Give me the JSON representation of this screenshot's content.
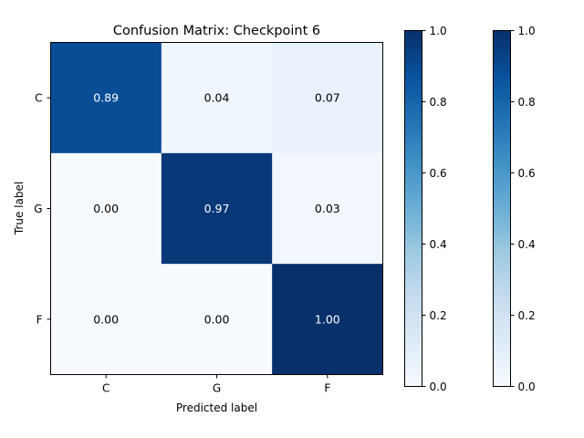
{
  "chart_data": {
    "type": "heatmap",
    "title": "Confusion Matrix: Checkpoint 6",
    "xlabel": "Predicted label",
    "ylabel": "True label",
    "x_categories": [
      "C",
      "G",
      "F"
    ],
    "y_categories": [
      "C",
      "G",
      "F"
    ],
    "values": [
      [
        0.89,
        0.04,
        0.07
      ],
      [
        0.0,
        0.97,
        0.03
      ],
      [
        0.0,
        0.0,
        1.0
      ]
    ],
    "value_labels": [
      [
        "0.89",
        "0.04",
        "0.07"
      ],
      [
        "0.00",
        "0.97",
        "0.03"
      ],
      [
        "0.00",
        "0.00",
        "1.00"
      ]
    ],
    "colormap": "Blues",
    "color_range": [
      0,
      1
    ],
    "colorbars": [
      {
        "ticks": [
          "0.0",
          "0.2",
          "0.4",
          "0.6",
          "0.8",
          "1.0"
        ]
      },
      {
        "ticks": [
          "0.0",
          "0.2",
          "0.4",
          "0.6",
          "0.8",
          "1.0"
        ]
      }
    ],
    "grid": false
  }
}
